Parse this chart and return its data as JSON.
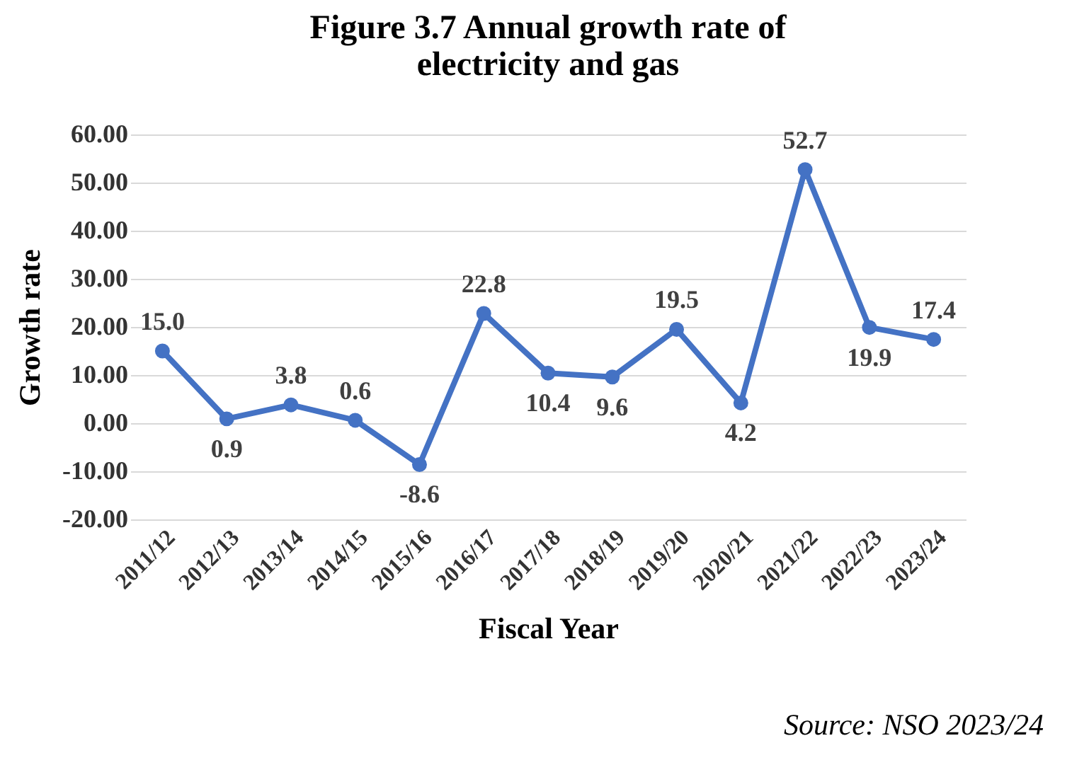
{
  "chart_data": {
    "type": "line",
    "title": "Figure 3.7 Annual growth rate of electricity and gas",
    "xlabel": "Fiscal Year",
    "ylabel": "Growth rate",
    "categories": [
      "2011/12",
      "2012/13",
      "2013/14",
      "2014/15",
      "2015/16",
      "2016/17",
      "2017/18",
      "2018/19",
      "2019/20",
      "2020/21",
      "2021/22",
      "2022/23",
      "2023/24"
    ],
    "series": [
      {
        "color": "#4472c4",
        "values": [
          15.0,
          0.9,
          3.8,
          0.6,
          -8.6,
          22.8,
          10.4,
          9.6,
          19.5,
          4.2,
          52.7,
          19.9,
          17.4
        ],
        "value_labels": [
          "15.0",
          "0.9",
          "3.8",
          "0.6",
          "-8.6",
          "22.8",
          "10.4",
          "9.6",
          "19.5",
          "4.2",
          "52.7",
          "19.9",
          "17.4"
        ]
      }
    ],
    "ylim": [
      -20,
      60
    ],
    "yticks": [
      {
        "value": -20,
        "label": "-20.00"
      },
      {
        "value": -10,
        "label": "-10.00"
      },
      {
        "value": 0,
        "label": "0.00"
      },
      {
        "value": 10,
        "label": "10.00"
      },
      {
        "value": 20,
        "label": "20.00"
      },
      {
        "value": 30,
        "label": "30.00"
      },
      {
        "value": 40,
        "label": "40.00"
      },
      {
        "value": 50,
        "label": "50.00"
      },
      {
        "value": 60,
        "label": "60.00"
      }
    ],
    "grid": "y",
    "marker": "circle",
    "line_style": "solid",
    "annotations": [
      "Source: NSO 2023/24"
    ]
  }
}
